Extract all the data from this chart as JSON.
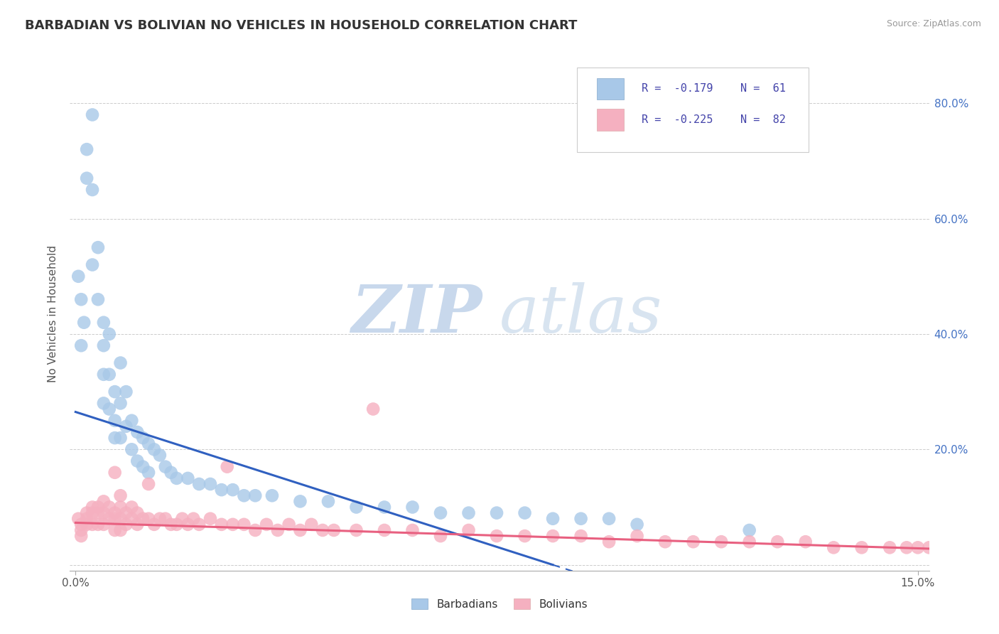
{
  "title": "BARBADIAN VS BOLIVIAN NO VEHICLES IN HOUSEHOLD CORRELATION CHART",
  "source": "Source: ZipAtlas.com",
  "ylabel": "No Vehicles in Household",
  "y_ticks": [
    0.0,
    0.2,
    0.4,
    0.6,
    0.8
  ],
  "y_tick_labels": [
    "",
    "20.0%",
    "40.0%",
    "60.0%",
    "80.0%"
  ],
  "x_range": [
    -0.001,
    0.152
  ],
  "y_range": [
    -0.01,
    0.88
  ],
  "barbadian_color": "#a8c8e8",
  "bolivian_color": "#f5b0c0",
  "barbadian_line_color": "#3060c0",
  "bolivian_line_color": "#e86080",
  "watermark_zip": "ZIP",
  "watermark_atlas": "atlas",
  "watermark_color": "#ccddf0",
  "background_color": "#ffffff",
  "grid_color": "#cccccc",
  "barbadian_x": [
    0.0005,
    0.001,
    0.001,
    0.0015,
    0.002,
    0.002,
    0.003,
    0.003,
    0.003,
    0.004,
    0.004,
    0.005,
    0.005,
    0.005,
    0.005,
    0.006,
    0.006,
    0.006,
    0.007,
    0.007,
    0.007,
    0.008,
    0.008,
    0.008,
    0.009,
    0.009,
    0.01,
    0.01,
    0.011,
    0.011,
    0.012,
    0.012,
    0.013,
    0.013,
    0.014,
    0.015,
    0.016,
    0.017,
    0.018,
    0.02,
    0.022,
    0.024,
    0.026,
    0.028,
    0.03,
    0.032,
    0.035,
    0.04,
    0.045,
    0.05,
    0.055,
    0.06,
    0.065,
    0.07,
    0.075,
    0.08,
    0.085,
    0.09,
    0.095,
    0.1,
    0.12
  ],
  "barbadian_y": [
    0.5,
    0.46,
    0.38,
    0.42,
    0.72,
    0.67,
    0.65,
    0.78,
    0.52,
    0.46,
    0.55,
    0.42,
    0.38,
    0.33,
    0.28,
    0.4,
    0.33,
    0.27,
    0.3,
    0.25,
    0.22,
    0.35,
    0.28,
    0.22,
    0.3,
    0.24,
    0.25,
    0.2,
    0.23,
    0.18,
    0.22,
    0.17,
    0.21,
    0.16,
    0.2,
    0.19,
    0.17,
    0.16,
    0.15,
    0.15,
    0.14,
    0.14,
    0.13,
    0.13,
    0.12,
    0.12,
    0.12,
    0.11,
    0.11,
    0.1,
    0.1,
    0.1,
    0.09,
    0.09,
    0.09,
    0.09,
    0.08,
    0.08,
    0.08,
    0.07,
    0.06
  ],
  "bolivian_x": [
    0.0005,
    0.001,
    0.001,
    0.001,
    0.002,
    0.002,
    0.002,
    0.003,
    0.003,
    0.003,
    0.004,
    0.004,
    0.004,
    0.005,
    0.005,
    0.005,
    0.006,
    0.006,
    0.007,
    0.007,
    0.007,
    0.008,
    0.008,
    0.008,
    0.009,
    0.009,
    0.01,
    0.01,
    0.011,
    0.011,
    0.012,
    0.013,
    0.014,
    0.015,
    0.016,
    0.017,
    0.018,
    0.019,
    0.02,
    0.021,
    0.022,
    0.024,
    0.026,
    0.028,
    0.03,
    0.032,
    0.034,
    0.036,
    0.038,
    0.04,
    0.042,
    0.044,
    0.046,
    0.05,
    0.055,
    0.06,
    0.065,
    0.07,
    0.075,
    0.08,
    0.085,
    0.09,
    0.095,
    0.1,
    0.105,
    0.11,
    0.115,
    0.12,
    0.125,
    0.13,
    0.135,
    0.14,
    0.145,
    0.148,
    0.15,
    0.152,
    0.053,
    0.027,
    0.013,
    0.008,
    0.007
  ],
  "bolivian_y": [
    0.08,
    0.07,
    0.06,
    0.05,
    0.09,
    0.08,
    0.07,
    0.1,
    0.09,
    0.07,
    0.1,
    0.09,
    0.07,
    0.11,
    0.09,
    0.07,
    0.1,
    0.08,
    0.09,
    0.08,
    0.06,
    0.1,
    0.08,
    0.06,
    0.09,
    0.07,
    0.1,
    0.08,
    0.09,
    0.07,
    0.08,
    0.08,
    0.07,
    0.08,
    0.08,
    0.07,
    0.07,
    0.08,
    0.07,
    0.08,
    0.07,
    0.08,
    0.07,
    0.07,
    0.07,
    0.06,
    0.07,
    0.06,
    0.07,
    0.06,
    0.07,
    0.06,
    0.06,
    0.06,
    0.06,
    0.06,
    0.05,
    0.06,
    0.05,
    0.05,
    0.05,
    0.05,
    0.04,
    0.05,
    0.04,
    0.04,
    0.04,
    0.04,
    0.04,
    0.04,
    0.03,
    0.03,
    0.03,
    0.03,
    0.03,
    0.03,
    0.27,
    0.17,
    0.14,
    0.12,
    0.16
  ],
  "barb_line_x0": 0.0,
  "barb_line_y0": 0.265,
  "barb_line_x1": 0.085,
  "barb_line_y1": 0.0,
  "barb_line_x1_dash": 0.085,
  "barb_line_x2_dash": 0.125,
  "boliv_line_x0": 0.0,
  "boliv_line_y0": 0.073,
  "boliv_line_x1": 0.152,
  "boliv_line_y1": 0.028
}
